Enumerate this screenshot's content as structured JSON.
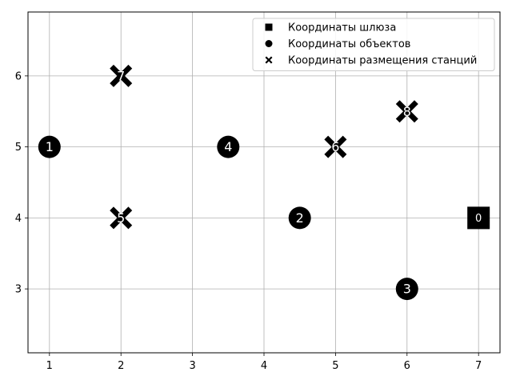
{
  "chart_data": {
    "type": "scatter",
    "title": "",
    "xlabel": "",
    "ylabel": "",
    "xlim": [
      0.7,
      7.3
    ],
    "ylim": [
      2.1,
      6.9
    ],
    "x_ticks": [
      1,
      2,
      3,
      4,
      5,
      6,
      7
    ],
    "y_ticks": [
      3,
      4,
      5,
      6
    ],
    "grid": true,
    "legend_position": "top-right",
    "colors": {
      "marker": "#000000",
      "label": "#ffffff",
      "grid": "#b0b0b0"
    },
    "series": [
      {
        "name": "Координаты шлюза",
        "marker": "square",
        "points": [
          {
            "x": 7,
            "y": 4,
            "label": "0"
          }
        ]
      },
      {
        "name": "Координаты объектов",
        "marker": "circle",
        "points": [
          {
            "x": 1,
            "y": 5,
            "label": "1"
          },
          {
            "x": 4.5,
            "y": 4,
            "label": "2"
          },
          {
            "x": 6,
            "y": 3,
            "label": "3"
          },
          {
            "x": 3.5,
            "y": 5,
            "label": "4"
          }
        ]
      },
      {
        "name": "Координаты размещения станций",
        "marker": "x",
        "points": [
          {
            "x": 2,
            "y": 4,
            "label": "5"
          },
          {
            "x": 5,
            "y": 5,
            "label": "6"
          },
          {
            "x": 2,
            "y": 6,
            "label": "7"
          },
          {
            "x": 6,
            "y": 5.5,
            "label": "8"
          }
        ]
      }
    ]
  }
}
